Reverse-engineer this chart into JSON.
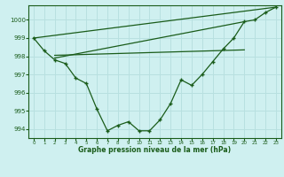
{
  "title": "Graphe pression niveau de la mer (hPa)",
  "bg_color": "#cff0f0",
  "grid_color": "#b8e0e0",
  "line_color": "#1a5c1a",
  "xlim": [
    -0.5,
    23.5
  ],
  "ylim": [
    993.5,
    1000.8
  ],
  "yticks": [
    994,
    995,
    996,
    997,
    998,
    999,
    1000
  ],
  "xticks": [
    0,
    1,
    2,
    3,
    4,
    5,
    6,
    7,
    8,
    9,
    10,
    11,
    12,
    13,
    14,
    15,
    16,
    17,
    18,
    19,
    20,
    21,
    22,
    23
  ],
  "line1_x": [
    0,
    1,
    2,
    3,
    4,
    5,
    6,
    7,
    8,
    9,
    10,
    11,
    12,
    13,
    14,
    15,
    16,
    17,
    18,
    19,
    20,
    21,
    22,
    23
  ],
  "line1_y": [
    999.0,
    998.3,
    997.8,
    997.6,
    996.8,
    996.5,
    995.1,
    993.9,
    994.2,
    994.4,
    993.9,
    993.9,
    994.5,
    995.4,
    996.7,
    996.4,
    997.0,
    997.7,
    998.4,
    999.0,
    999.9,
    1000.0,
    1000.4,
    1000.7
  ],
  "line2_x": [
    0,
    23
  ],
  "line2_y": [
    999.0,
    1000.7
  ],
  "line3_x": [
    2,
    20
  ],
  "line3_y": [
    997.9,
    999.9
  ],
  "line4_x": [
    2,
    20
  ],
  "line4_y": [
    998.05,
    998.35
  ]
}
